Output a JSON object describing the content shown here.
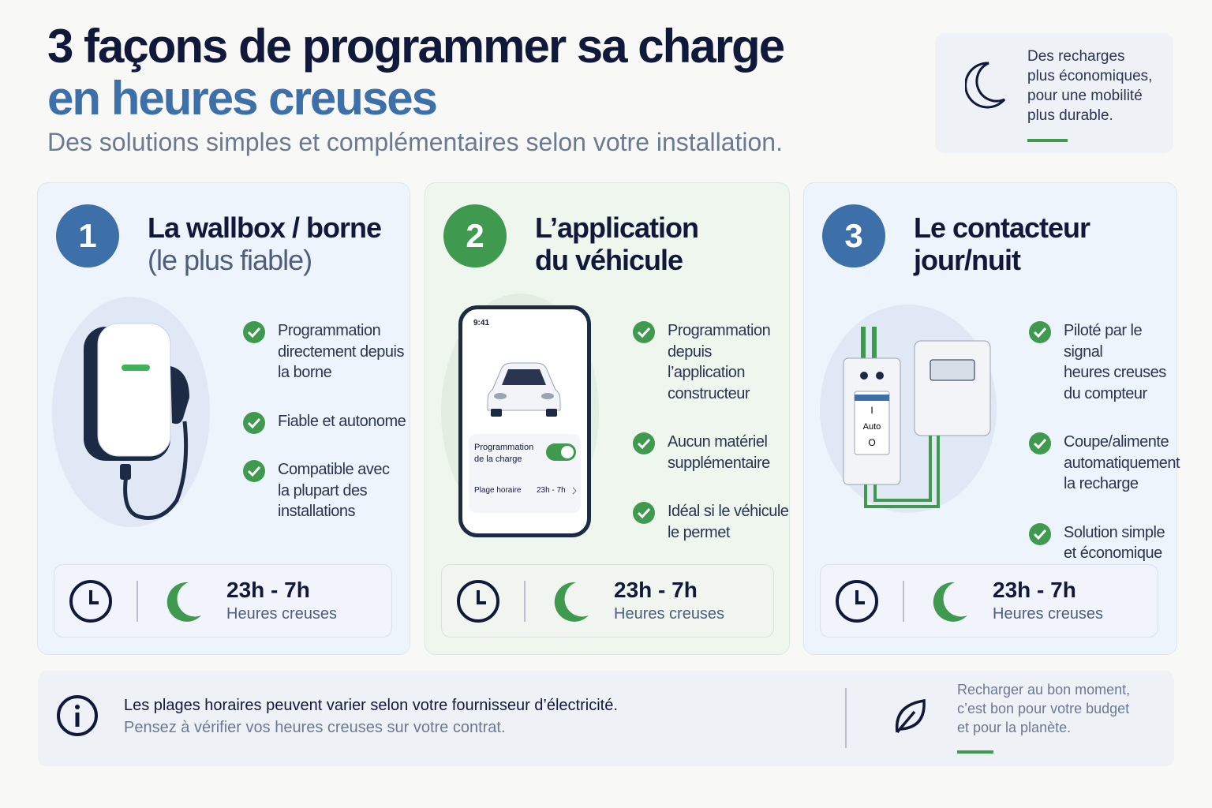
{
  "header": {
    "title_line1": "3 façons de programmer sa charge",
    "title_line2": "en heures creuses",
    "subtitle": "Des solutions simples et complémentaires selon votre installation."
  },
  "aside": {
    "lines": [
      "Des recharges",
      "plus économiques,",
      "pour une mobilité",
      "plus durable."
    ]
  },
  "cards": [
    {
      "number": "1",
      "title_lines": [
        "La wallbox / borne"
      ],
      "subtitle": "(le plus fiable)",
      "features": [
        [
          "Programmation",
          "directement depuis",
          "la borne"
        ],
        [
          "Fiable et autonome"
        ],
        [
          "Compatible avec",
          "la plupart des",
          "installations"
        ]
      ],
      "time": "23h - 7h",
      "time_label": "Heures creuses"
    },
    {
      "number": "2",
      "title_lines": [
        "L’application",
        "du véhicule"
      ],
      "features": [
        [
          "Programmation",
          "depuis l’application",
          "constructeur"
        ],
        [
          "Aucun matériel",
          "supplémentaire"
        ],
        [
          "Idéal si le véhicule",
          "le permet"
        ]
      ],
      "time": "23h - 7h",
      "time_label": "Heures creuses"
    },
    {
      "number": "3",
      "title_lines": [
        "Le contacteur",
        "jour/nuit"
      ],
      "features": [
        [
          "Piloté par le signal",
          "heures creuses",
          "du compteur"
        ],
        [
          "Coupe/alimente",
          "automatiquement",
          "la recharge"
        ],
        [
          "Solution simple",
          "et économique"
        ]
      ],
      "time": "23h - 7h",
      "time_label": "Heures creuses"
    }
  ],
  "phone": {
    "status_time": "9:41",
    "toggle_label": [
      "Programmation",
      "de la charge"
    ],
    "row_label": "Plage horaire",
    "row_value": "23h - 7h"
  },
  "switch": {
    "on": "I",
    "auto": "Auto",
    "off": "O"
  },
  "footer": {
    "note": "Les plages horaires peuvent varier selon votre fournisseur d’électricité.",
    "hint": "Pensez à vérifier vos heures creuses sur votre contrat.",
    "side": [
      "Recharger au bon moment,",
      "c’est bon pour votre budget",
      "et pour la planète."
    ]
  }
}
